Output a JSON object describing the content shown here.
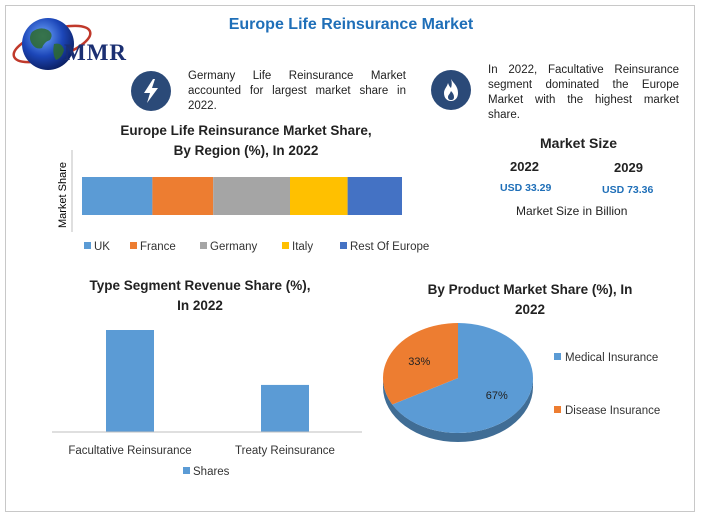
{
  "page": {
    "title": "Europe Life Reinsurance Market",
    "logo_text": "MMR"
  },
  "info": {
    "left_text": "Germany Life Reinsurance Market accounted for largest market share in 2022.",
    "left_icon": "lightning-icon",
    "right_text": "In 2022, Facultative Reinsurance segment dominated the Europe Market with the highest market share.",
    "right_icon": "flame-icon"
  },
  "market_size": {
    "title": "Market Size",
    "year1": "2022",
    "value1": "USD 33.29",
    "year2": "2029",
    "value2": "USD 73.36",
    "note": "Market Size in Billion"
  },
  "chart_data": [
    {
      "type": "bar",
      "orientation": "horizontal-stacked",
      "title": "Europe Life Reinsurance Market Share, By Region (%), In 2022",
      "title_lines": [
        "Europe Life Reinsurance Market Share,",
        "By Region (%), In 2022"
      ],
      "ylabel": "Market Share",
      "categories": [
        "Market Share"
      ],
      "series": [
        {
          "name": "UK",
          "values": [
            22
          ],
          "color": "#5b9bd5"
        },
        {
          "name": "France",
          "values": [
            19
          ],
          "color": "#ed7d31"
        },
        {
          "name": "Germany",
          "values": [
            24
          ],
          "color": "#a5a5a5"
        },
        {
          "name": "Italy",
          "values": [
            18
          ],
          "color": "#ffc000"
        },
        {
          "name": "Rest Of Europe",
          "values": [
            17
          ],
          "color": "#4472c4"
        }
      ],
      "legend": "bottom"
    },
    {
      "type": "bar",
      "title": "Type Segment Revenue Share (%), In 2022",
      "title_lines": [
        "Type Segment Revenue Share (%),",
        "In 2022"
      ],
      "categories": [
        "Facultative Reinsurance",
        "Treaty Reinsurance"
      ],
      "series": [
        {
          "name": "Shares",
          "values": [
            65,
            30
          ],
          "color": "#5b9bd5"
        }
      ],
      "ylim": [
        0,
        65
      ],
      "legend": "bottom"
    },
    {
      "type": "pie",
      "title": "By Product Market Share (%), In 2022",
      "title_lines": [
        "By Product Market Share (%), In",
        "2022"
      ],
      "slices": [
        {
          "label": "Medical Insurance",
          "value": 67,
          "display": "67%",
          "color": "#5b9bd5"
        },
        {
          "label": "Disease Insurance",
          "value": 33,
          "display": "33%",
          "color": "#ed7d31"
        }
      ],
      "legend": "right"
    }
  ]
}
